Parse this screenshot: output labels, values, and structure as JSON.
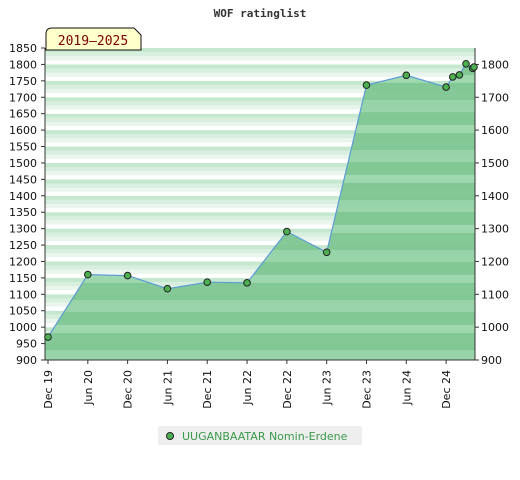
{
  "chart_data": {
    "type": "area",
    "title": "WOF ratinglist",
    "period_label": "2019–2025",
    "xlabel": "",
    "ylabel": "",
    "x_ticks": [
      "Dec 19",
      "Jun 20",
      "Dec 20",
      "Jun 21",
      "Dec 21",
      "Jun 22",
      "Dec 22",
      "Jun 23",
      "Dec 23",
      "Jun 24",
      "Dec 24"
    ],
    "y_left_ticks": [
      900,
      950,
      1000,
      1050,
      1100,
      1150,
      1200,
      1250,
      1300,
      1350,
      1400,
      1450,
      1500,
      1550,
      1600,
      1650,
      1700,
      1750,
      1800,
      1850
    ],
    "y_right_ticks": [
      900,
      1000,
      1100,
      1200,
      1300,
      1400,
      1500,
      1600,
      1700,
      1800
    ],
    "ylim": [
      900,
      1850
    ],
    "xlim": [
      "2019-12",
      "2025-03"
    ],
    "grid": false,
    "legend_position": "bottom-center",
    "colors": {
      "line": "#5b9bd5",
      "marker": "#4caf50",
      "fill_dark": "#7dc691",
      "fill_light": "#c8e9d0",
      "badge_bg": "#ffffcc"
    },
    "series": [
      {
        "name": "UUGANBAATAR Nomin-Erdene",
        "x": [
          "2019-12",
          "2020-06",
          "2020-12",
          "2021-06",
          "2021-12",
          "2022-06",
          "2022-12",
          "2023-06",
          "2023-12",
          "2024-06",
          "2024-12",
          "2025-01",
          "2025-02",
          "2025-03",
          "2025-04",
          "2025-05"
        ],
        "values": [
          970,
          1160,
          1157,
          1117,
          1137,
          1135,
          1291,
          1228,
          1737,
          1767,
          1731,
          1762,
          1768,
          1802,
          1788,
          1792
        ]
      }
    ]
  }
}
